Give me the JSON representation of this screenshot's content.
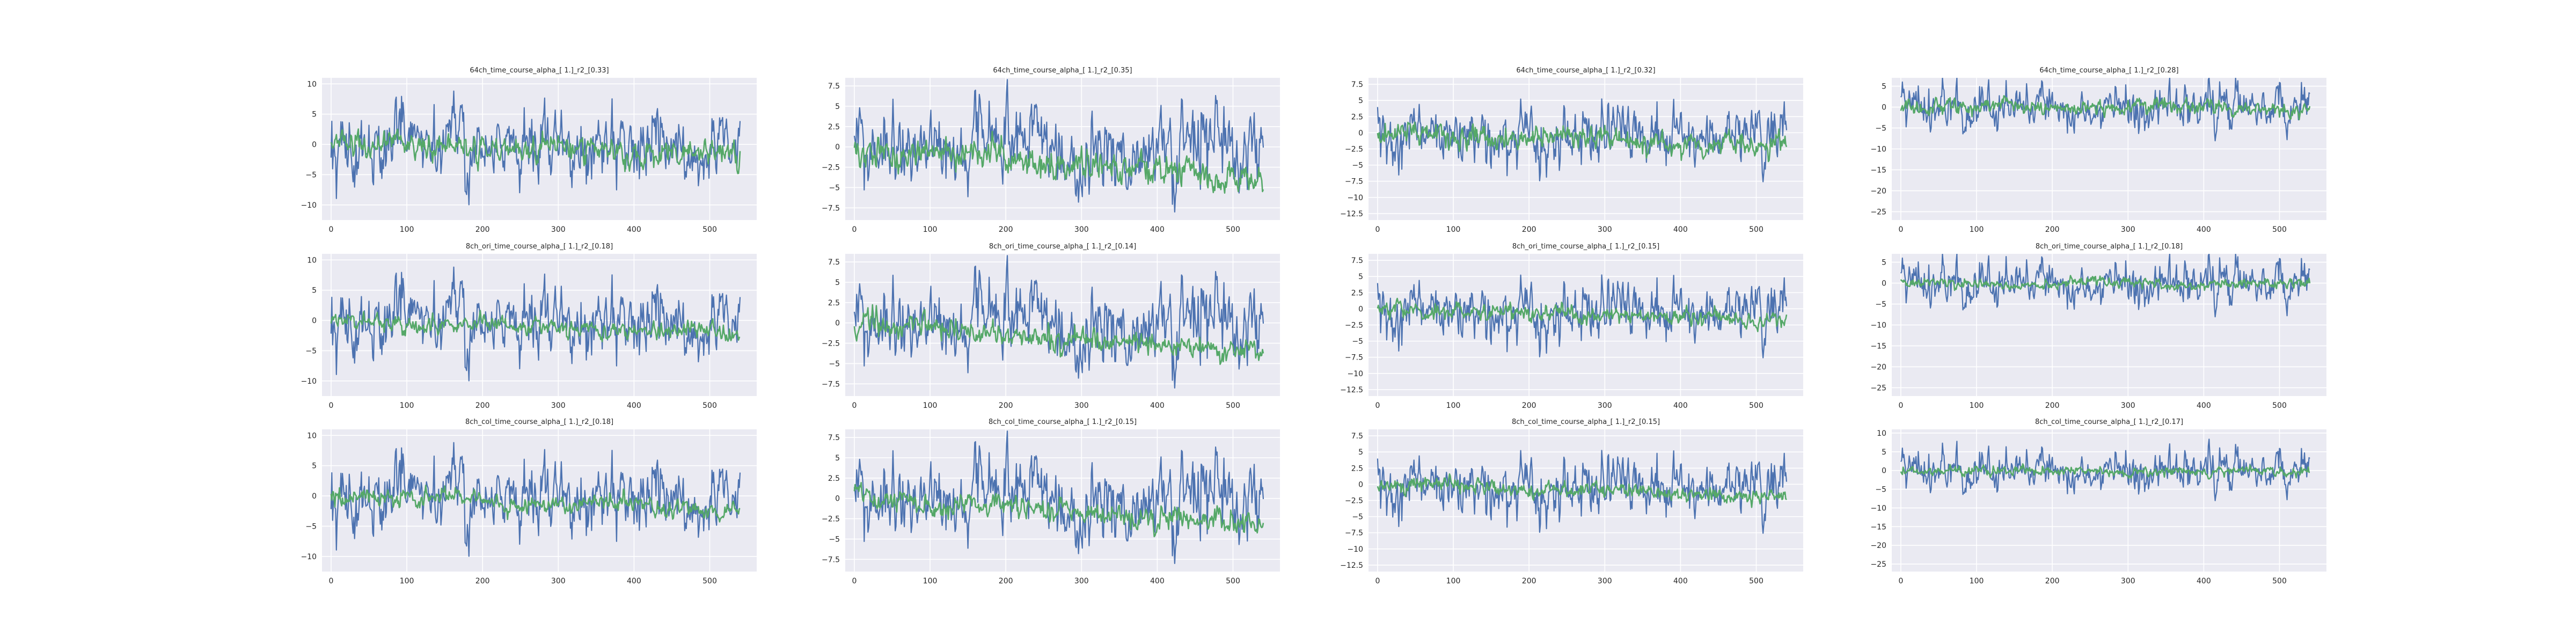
{
  "figure": {
    "rows": 3,
    "cols": 4
  },
  "colors": {
    "series_blue": "#4c72b0",
    "series_green": "#55a868",
    "panel_bg": "#eaeaf2",
    "grid": "#ffffff"
  },
  "chart_data": [
    {
      "type": "line",
      "title": "64ch_time_course_alpha_[ 1.]_r2_[0.33]",
      "xlim": [
        -12,
        562
      ],
      "ylim": [
        -12.5,
        11
      ],
      "xticks": [
        0,
        100,
        200,
        300,
        400,
        500
      ],
      "yticks": [
        -10,
        -5,
        0,
        5,
        10
      ],
      "xlabel": "",
      "ylabel": "",
      "grid": true,
      "series": [
        {
          "n": 541,
          "seed": 11,
          "amp": 3.2,
          "drift": 0,
          "color": "blue"
        },
        {
          "n": 541,
          "seed": 12,
          "amp": 1.2,
          "drift": -1.5,
          "color": "green"
        }
      ]
    },
    {
      "type": "line",
      "title": "64ch_time_course_alpha_[ 1.]_r2_[0.35]",
      "xlim": [
        -12,
        562
      ],
      "ylim": [
        -9,
        8.5
      ],
      "xticks": [
        0,
        100,
        200,
        300,
        400,
        500
      ],
      "yticks": [
        -7.5,
        -5.0,
        -2.5,
        0.0,
        2.5,
        5.0,
        7.5
      ],
      "xlabel": "",
      "ylabel": "",
      "grid": true,
      "series": [
        {
          "n": 541,
          "seed": 21,
          "amp": 2.8,
          "drift": 0,
          "color": "blue"
        },
        {
          "n": 541,
          "seed": 22,
          "amp": 1.1,
          "drift": -3.5,
          "color": "green"
        }
      ]
    },
    {
      "type": "line",
      "title": "64ch_time_course_alpha_[ 1.]_r2_[0.32]",
      "xlim": [
        -12,
        562
      ],
      "ylim": [
        -13.5,
        8.5
      ],
      "xticks": [
        0,
        100,
        200,
        300,
        400,
        500
      ],
      "yticks": [
        -12.5,
        -10.0,
        -7.5,
        -5.0,
        -2.5,
        0.0,
        2.5,
        5.0,
        7.5
      ],
      "xlabel": "",
      "ylabel": "",
      "grid": true,
      "series": [
        {
          "n": 541,
          "seed": 31,
          "amp": 2.6,
          "drift": 0,
          "color": "blue"
        },
        {
          "n": 541,
          "seed": 32,
          "amp": 1.0,
          "drift": -2.0,
          "color": "green"
        }
      ]
    },
    {
      "type": "line",
      "title": "64ch_time_course_alpha_[ 1.]_r2_[0.28]",
      "xlim": [
        -12,
        562
      ],
      "ylim": [
        -27,
        7
      ],
      "xticks": [
        0,
        100,
        200,
        300,
        400,
        500
      ],
      "yticks": [
        -25,
        -20,
        -15,
        -10,
        -5,
        0,
        5
      ],
      "xlabel": "",
      "ylabel": "",
      "grid": true,
      "series": [
        {
          "n": 541,
          "seed": 41,
          "amp": 3.0,
          "drift": 0,
          "color": "blue"
        },
        {
          "n": 541,
          "seed": 42,
          "amp": 1.0,
          "drift": -0.5,
          "color": "green"
        }
      ]
    },
    {
      "type": "line",
      "title": "8ch_ori_time_course_alpha_[ 1.]_r2_[0.18]",
      "xlim": [
        -12,
        562
      ],
      "ylim": [
        -12.5,
        11
      ],
      "xticks": [
        0,
        100,
        200,
        300,
        400,
        500
      ],
      "yticks": [
        -10,
        -5,
        0,
        5,
        10
      ],
      "xlabel": "",
      "ylabel": "",
      "grid": true,
      "series": [
        {
          "n": 541,
          "seed": 11,
          "amp": 3.2,
          "drift": 0,
          "color": "blue"
        },
        {
          "n": 541,
          "seed": 52,
          "amp": 0.8,
          "drift": -2.2,
          "color": "green"
        }
      ]
    },
    {
      "type": "line",
      "title": "8ch_ori_time_course_alpha_[ 1.]_r2_[0.14]",
      "xlim": [
        -12,
        562
      ],
      "ylim": [
        -9,
        8.5
      ],
      "xticks": [
        0,
        100,
        200,
        300,
        400,
        500
      ],
      "yticks": [
        -7.5,
        -5.0,
        -2.5,
        0.0,
        2.5,
        5.0,
        7.5
      ],
      "xlabel": "",
      "ylabel": "",
      "grid": true,
      "series": [
        {
          "n": 541,
          "seed": 21,
          "amp": 2.8,
          "drift": 0,
          "color": "blue"
        },
        {
          "n": 541,
          "seed": 62,
          "amp": 0.8,
          "drift": -3.5,
          "color": "green"
        }
      ]
    },
    {
      "type": "line",
      "title": "8ch_ori_time_course_alpha_[ 1.]_r2_[0.15]",
      "xlim": [
        -12,
        562
      ],
      "ylim": [
        -13.5,
        8.5
      ],
      "xticks": [
        0,
        100,
        200,
        300,
        400,
        500
      ],
      "yticks": [
        -12.5,
        -10.0,
        -7.5,
        -5.0,
        -2.5,
        0.0,
        2.5,
        5.0,
        7.5
      ],
      "xlabel": "",
      "ylabel": "",
      "grid": true,
      "series": [
        {
          "n": 541,
          "seed": 31,
          "amp": 2.6,
          "drift": 0,
          "color": "blue"
        },
        {
          "n": 541,
          "seed": 72,
          "amp": 0.7,
          "drift": -1.8,
          "color": "green"
        }
      ]
    },
    {
      "type": "line",
      "title": "8ch_ori_time_course_alpha_[ 1.]_r2_[0.18]",
      "xlim": [
        -12,
        562
      ],
      "ylim": [
        -27,
        7
      ],
      "xticks": [
        0,
        100,
        200,
        300,
        400,
        500
      ],
      "yticks": [
        -25,
        -20,
        -15,
        -10,
        -5,
        0,
        5
      ],
      "xlabel": "",
      "ylabel": "",
      "grid": true,
      "series": [
        {
          "n": 541,
          "seed": 41,
          "amp": 3.0,
          "drift": 0,
          "color": "blue"
        },
        {
          "n": 541,
          "seed": 82,
          "amp": 0.7,
          "drift": -0.3,
          "color": "green"
        }
      ]
    },
    {
      "type": "line",
      "title": "8ch_col_time_course_alpha_[ 1.]_r2_[0.18]",
      "xlim": [
        -12,
        562
      ],
      "ylim": [
        -12.5,
        11
      ],
      "xticks": [
        0,
        100,
        200,
        300,
        400,
        500
      ],
      "yticks": [
        -10,
        -5,
        0,
        5,
        10
      ],
      "xlabel": "",
      "ylabel": "",
      "grid": true,
      "series": [
        {
          "n": 541,
          "seed": 11,
          "amp": 3.2,
          "drift": 0,
          "color": "blue"
        },
        {
          "n": 541,
          "seed": 92,
          "amp": 0.8,
          "drift": -2.2,
          "color": "green"
        }
      ]
    },
    {
      "type": "line",
      "title": "8ch_col_time_course_alpha_[ 1.]_r2_[0.15]",
      "xlim": [
        -12,
        562
      ],
      "ylim": [
        -9,
        8.5
      ],
      "xticks": [
        0,
        100,
        200,
        300,
        400,
        500
      ],
      "yticks": [
        -7.5,
        -5.0,
        -2.5,
        0.0,
        2.5,
        5.0,
        7.5
      ],
      "xlabel": "",
      "ylabel": "",
      "grid": true,
      "series": [
        {
          "n": 541,
          "seed": 21,
          "amp": 2.8,
          "drift": 0,
          "color": "blue"
        },
        {
          "n": 541,
          "seed": 102,
          "amp": 0.8,
          "drift": -3.2,
          "color": "green"
        }
      ]
    },
    {
      "type": "line",
      "title": "8ch_col_time_course_alpha_[ 1.]_r2_[0.15]",
      "xlim": [
        -12,
        562
      ],
      "ylim": [
        -13.5,
        8.5
      ],
      "xticks": [
        0,
        100,
        200,
        300,
        400,
        500
      ],
      "yticks": [
        -12.5,
        -10.0,
        -7.5,
        -5.0,
        -2.5,
        0.0,
        2.5,
        5.0,
        7.5
      ],
      "xlabel": "",
      "ylabel": "",
      "grid": true,
      "series": [
        {
          "n": 541,
          "seed": 31,
          "amp": 2.6,
          "drift": 0,
          "color": "blue"
        },
        {
          "n": 541,
          "seed": 112,
          "amp": 0.7,
          "drift": -1.8,
          "color": "green"
        }
      ]
    },
    {
      "type": "line",
      "title": "8ch_col_time_course_alpha_[ 1.]_r2_[0.17]",
      "xlim": [
        -12,
        562
      ],
      "ylim": [
        -27,
        11
      ],
      "xticks": [
        0,
        100,
        200,
        300,
        400,
        500
      ],
      "yticks": [
        -25,
        -20,
        -15,
        -10,
        -5,
        0,
        5,
        10
      ],
      "xlabel": "",
      "ylabel": "",
      "grid": true,
      "series": [
        {
          "n": 541,
          "seed": 41,
          "amp": 3.0,
          "drift": 0,
          "color": "blue"
        },
        {
          "n": 541,
          "seed": 122,
          "amp": 0.7,
          "drift": -0.3,
          "color": "green"
        }
      ]
    }
  ]
}
